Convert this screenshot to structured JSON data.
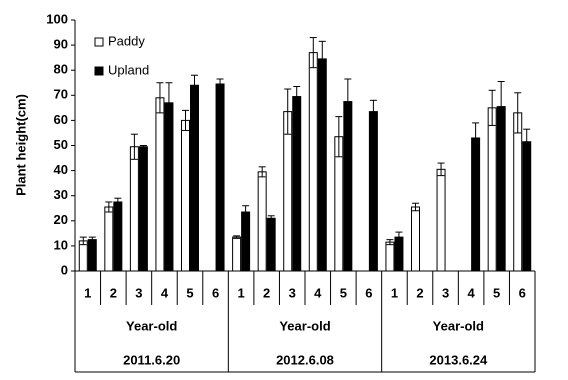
{
  "chart_data": {
    "type": "bar",
    "y_label": "Plant height(cm)",
    "categories": [
      "1",
      "2",
      "3",
      "4",
      "5",
      "6",
      "1",
      "2",
      "3",
      "4",
      "5",
      "6",
      "1",
      "2",
      "3",
      "4",
      "5",
      "6"
    ],
    "groups": [
      {
        "label": "Year-old",
        "date": "2011.6.20"
      },
      {
        "label": "Year-old",
        "date": "2012.6.08"
      },
      {
        "label": "Year-old",
        "date": "2013.6.24"
      }
    ],
    "series": [
      {
        "name": "Paddy",
        "color": "#ffffff",
        "values": [
          12,
          25.5,
          49.5,
          69,
          60,
          null,
          13.5,
          39.5,
          63.5,
          87,
          53.5,
          null,
          11.5,
          25.5,
          40.5,
          null,
          65,
          63
        ],
        "errors": [
          1.5,
          2,
          5,
          6,
          4,
          null,
          0.5,
          2,
          9,
          6,
          8,
          null,
          1,
          1.5,
          2.5,
          null,
          7,
          8
        ]
      },
      {
        "name": "Upland",
        "color": "#000000",
        "values": [
          12.5,
          27.5,
          49.5,
          67,
          74,
          74.5,
          23.5,
          21,
          69.5,
          84.5,
          67.5,
          63.5,
          13.5,
          null,
          null,
          53,
          65.5,
          51.5
        ],
        "errors": [
          1,
          1.5,
          0.5,
          8,
          4,
          2,
          2.5,
          1,
          4,
          7,
          9,
          4.5,
          2,
          null,
          null,
          6,
          10,
          5
        ]
      }
    ],
    "ylim": [
      0,
      100
    ],
    "yticks": [
      0,
      10,
      20,
      30,
      40,
      50,
      60,
      70,
      80,
      90,
      100
    ],
    "legend": "upper left",
    "grid": false
  }
}
